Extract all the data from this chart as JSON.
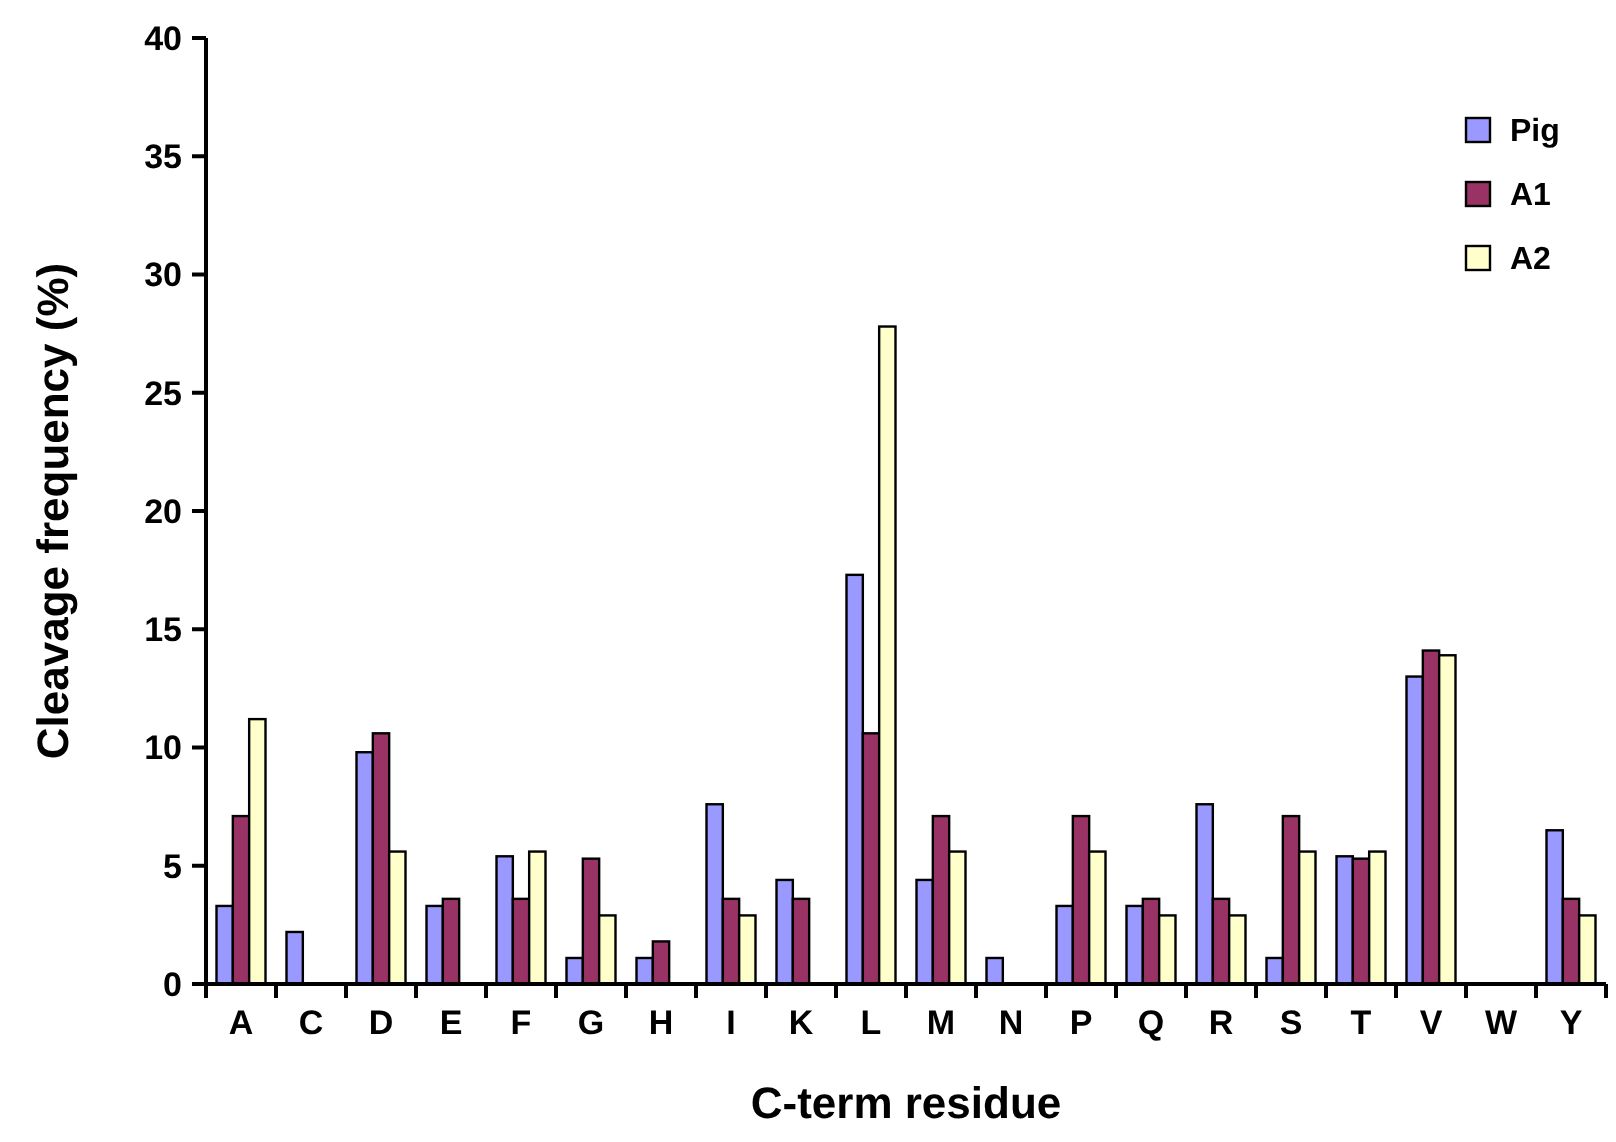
{
  "chart_data": {
    "type": "bar",
    "xlabel": "C-term residue",
    "ylabel": "Cleavage frequency (%)",
    "categories": [
      "A",
      "C",
      "D",
      "E",
      "F",
      "G",
      "H",
      "I",
      "K",
      "L",
      "M",
      "N",
      "P",
      "Q",
      "R",
      "S",
      "T",
      "V",
      "W",
      "Y"
    ],
    "series": [
      {
        "name": "Pig",
        "color": "#9999ff",
        "values": [
          3.3,
          2.2,
          9.8,
          3.3,
          5.4,
          1.1,
          1.1,
          7.6,
          4.4,
          17.3,
          4.4,
          1.1,
          3.3,
          3.3,
          7.6,
          1.1,
          5.4,
          13.0,
          0,
          6.5
        ]
      },
      {
        "name": "A1",
        "color": "#993366",
        "values": [
          7.1,
          0,
          10.6,
          3.6,
          3.6,
          5.3,
          1.8,
          3.6,
          3.6,
          10.6,
          7.1,
          0,
          7.1,
          3.6,
          3.6,
          7.1,
          5.3,
          14.1,
          0,
          3.6
        ]
      },
      {
        "name": "A2",
        "color": "#ffffcc",
        "values": [
          11.2,
          0,
          5.6,
          0,
          5.6,
          2.9,
          0,
          2.9,
          0,
          27.8,
          5.6,
          0,
          5.6,
          2.9,
          2.9,
          5.6,
          5.6,
          13.9,
          0,
          2.9
        ]
      }
    ],
    "ylim": [
      0,
      40
    ],
    "yticks": [
      0,
      5,
      10,
      15,
      20,
      25,
      30,
      35,
      40
    ],
    "grid": false,
    "legend": "top right"
  }
}
